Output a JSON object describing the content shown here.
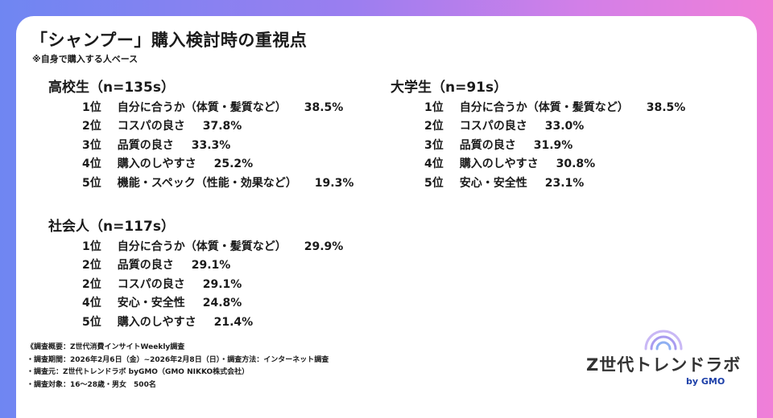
{
  "header": {
    "title": "「シャンプー」購入検討時の重視点",
    "subtitle": "※自身で購入する人ベース"
  },
  "groups": {
    "high_school": {
      "title": "高校生（n=135s）",
      "rows": [
        {
          "rank": "1位",
          "label": "自分に合うか（体質・髪質など）",
          "value": "38.5%"
        },
        {
          "rank": "2位",
          "label": "コスパの良さ",
          "value": "37.8%"
        },
        {
          "rank": "3位",
          "label": "品質の良さ",
          "value": "33.3%"
        },
        {
          "rank": "4位",
          "label": "購入のしやすさ",
          "value": "25.2%"
        },
        {
          "rank": "5位",
          "label": "機能・スペック（性能・効果など）",
          "value": "19.3%"
        }
      ]
    },
    "university": {
      "title": "大学生（n=91s）",
      "rows": [
        {
          "rank": "1位",
          "label": "自分に合うか（体質・髪質など）",
          "value": "38.5%"
        },
        {
          "rank": "2位",
          "label": "コスパの良さ",
          "value": "33.0%"
        },
        {
          "rank": "3位",
          "label": "品質の良さ",
          "value": "31.9%"
        },
        {
          "rank": "4位",
          "label": "購入のしやすさ",
          "value": "30.8%"
        },
        {
          "rank": "5位",
          "label": "安心・安全性",
          "value": "23.1%"
        }
      ]
    },
    "working": {
      "title": "社会人（n=117s）",
      "rows": [
        {
          "rank": "1位",
          "label": "自分に合うか（体質・髪質など）",
          "value": "29.9%"
        },
        {
          "rank": "2位",
          "label": "品質の良さ",
          "value": "29.1%"
        },
        {
          "rank": "2位",
          "label": "コスパの良さ",
          "value": "29.1%"
        },
        {
          "rank": "4位",
          "label": "安心・安全性",
          "value": "24.8%"
        },
        {
          "rank": "5位",
          "label": "購入のしやすさ",
          "value": "21.4%"
        }
      ]
    }
  },
  "notes": [
    "《調査概要：Z世代消費インサイトWeekly調査",
    "・調査期間：2026年2月6日（金）~2026年2月8日（日）・調査方法：インターネット調査",
    "・調査元：Z世代トレンドラボ byGMO（GMO NIKKO株式会社）",
    "・調査対象：16～28歳・男女　500名"
  ],
  "logo": {
    "main": "Z世代トレンドラボ",
    "by": "by GMO",
    "arc_color": "#a99cf0",
    "by_color": "#1c3fa8"
  }
}
